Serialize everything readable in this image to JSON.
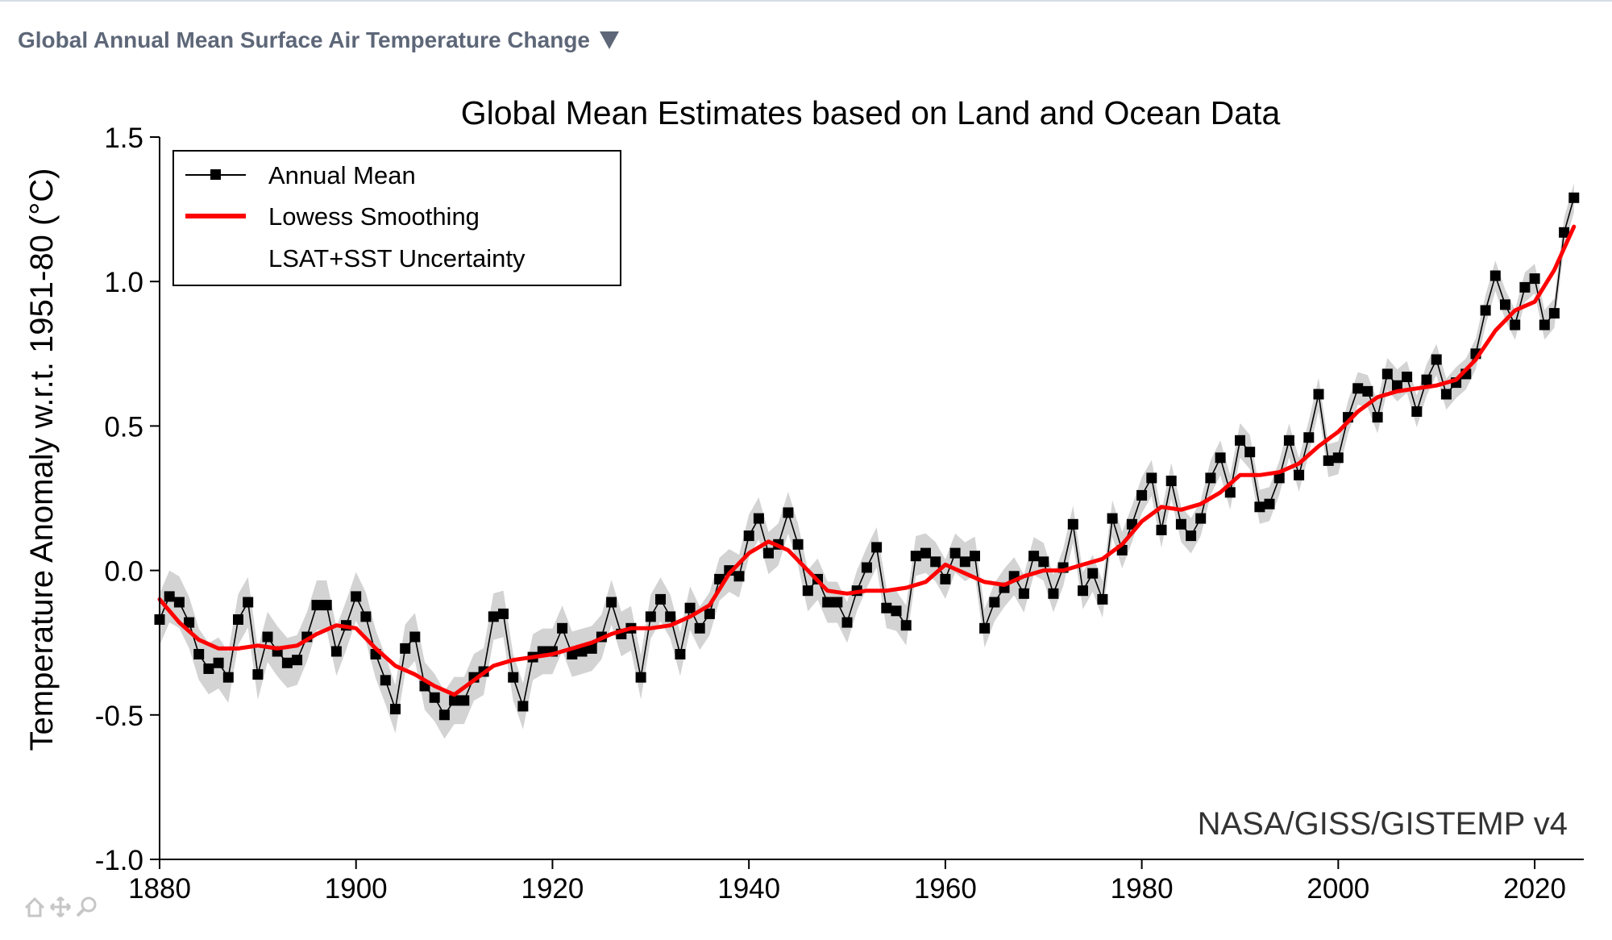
{
  "header": {
    "title": "Global Annual Mean Surface Air Temperature Change",
    "toggle_icon": "triangle-down-icon"
  },
  "colors": {
    "header_text": "#5d6778",
    "smoothing": "#ff0000",
    "uncertainty": "#d3d3d3",
    "annual": "#000000"
  },
  "toolbar": {
    "icons": [
      "home-icon",
      "pan-icon",
      "zoom-icon"
    ]
  },
  "chart_data": {
    "type": "line",
    "title": "Global Mean Estimates based on Land and Ocean Data",
    "xlabel": "",
    "ylabel": "Temperature Anomaly w.r.t. 1951-80 (°C)",
    "annotation": "NASA/GISS/GISTEMP v4",
    "xlim": [
      1880,
      2025
    ],
    "ylim": [
      -1.0,
      1.5
    ],
    "x_ticks": [
      "1880",
      "1900",
      "1920",
      "1940",
      "1960",
      "1980",
      "2000",
      "2020"
    ],
    "y_ticks": [
      "1.5",
      "1.0",
      "0.5",
      "0.0",
      "-0.5",
      "-1.0"
    ],
    "legend": {
      "position": "top-left",
      "entries": [
        "Annual Mean",
        "Lowess Smoothing",
        "LSAT+SST Uncertainty"
      ]
    },
    "series": [
      {
        "name": "Annual Mean",
        "style": "line-with-square-markers",
        "x": [
          1880,
          1881,
          1882,
          1883,
          1884,
          1885,
          1886,
          1887,
          1888,
          1889,
          1890,
          1891,
          1892,
          1893,
          1894,
          1895,
          1896,
          1897,
          1898,
          1899,
          1900,
          1901,
          1902,
          1903,
          1904,
          1905,
          1906,
          1907,
          1908,
          1909,
          1910,
          1911,
          1912,
          1913,
          1914,
          1915,
          1916,
          1917,
          1918,
          1919,
          1920,
          1921,
          1922,
          1923,
          1924,
          1925,
          1926,
          1927,
          1928,
          1929,
          1930,
          1931,
          1932,
          1933,
          1934,
          1935,
          1936,
          1937,
          1938,
          1939,
          1940,
          1941,
          1942,
          1943,
          1944,
          1945,
          1946,
          1947,
          1948,
          1949,
          1950,
          1951,
          1952,
          1953,
          1954,
          1955,
          1956,
          1957,
          1958,
          1959,
          1960,
          1961,
          1962,
          1963,
          1964,
          1965,
          1966,
          1967,
          1968,
          1969,
          1970,
          1971,
          1972,
          1973,
          1974,
          1975,
          1976,
          1977,
          1978,
          1979,
          1980,
          1981,
          1982,
          1983,
          1984,
          1985,
          1986,
          1987,
          1988,
          1989,
          1990,
          1991,
          1992,
          1993,
          1994,
          1995,
          1996,
          1997,
          1998,
          1999,
          2000,
          2001,
          2002,
          2003,
          2004,
          2005,
          2006,
          2007,
          2008,
          2009,
          2010,
          2011,
          2012,
          2013,
          2014,
          2015,
          2016,
          2017,
          2018,
          2019,
          2020,
          2021,
          2022,
          2023,
          2024
        ],
        "y": [
          -0.17,
          -0.09,
          -0.11,
          -0.18,
          -0.29,
          -0.34,
          -0.32,
          -0.37,
          -0.17,
          -0.11,
          -0.36,
          -0.23,
          -0.28,
          -0.32,
          -0.31,
          -0.23,
          -0.12,
          -0.12,
          -0.28,
          -0.19,
          -0.09,
          -0.16,
          -0.29,
          -0.38,
          -0.48,
          -0.27,
          -0.23,
          -0.4,
          -0.44,
          -0.5,
          -0.45,
          -0.45,
          -0.37,
          -0.35,
          -0.16,
          -0.15,
          -0.37,
          -0.47,
          -0.3,
          -0.28,
          -0.28,
          -0.2,
          -0.29,
          -0.28,
          -0.27,
          -0.23,
          -0.11,
          -0.22,
          -0.2,
          -0.37,
          -0.16,
          -0.1,
          -0.16,
          -0.29,
          -0.13,
          -0.2,
          -0.15,
          -0.03,
          0.0,
          -0.02,
          0.12,
          0.18,
          0.06,
          0.09,
          0.2,
          0.09,
          -0.07,
          -0.03,
          -0.11,
          -0.11,
          -0.18,
          -0.07,
          0.01,
          0.08,
          -0.13,
          -0.14,
          -0.19,
          0.05,
          0.06,
          0.03,
          -0.03,
          0.06,
          0.03,
          0.05,
          -0.2,
          -0.11,
          -0.06,
          -0.02,
          -0.08,
          0.05,
          0.03,
          -0.08,
          0.01,
          0.16,
          -0.07,
          -0.01,
          -0.1,
          0.18,
          0.07,
          0.16,
          0.26,
          0.32,
          0.14,
          0.31,
          0.16,
          0.12,
          0.18,
          0.32,
          0.39,
          0.27,
          0.45,
          0.41,
          0.22,
          0.23,
          0.32,
          0.45,
          0.33,
          0.46,
          0.61,
          0.38,
          0.39,
          0.53,
          0.63,
          0.62,
          0.53,
          0.68,
          0.64,
          0.67,
          0.55,
          0.66,
          0.73,
          0.61,
          0.65,
          0.68,
          0.75,
          0.9,
          1.02,
          0.92,
          0.85,
          0.98,
          1.01,
          0.85,
          0.89,
          1.17,
          1.29
        ]
      },
      {
        "name": "Lowess Smoothing",
        "style": "line",
        "x": [
          1880,
          1882,
          1884,
          1886,
          1888,
          1890,
          1892,
          1894,
          1896,
          1898,
          1900,
          1902,
          1904,
          1906,
          1908,
          1910,
          1912,
          1914,
          1916,
          1918,
          1920,
          1922,
          1924,
          1926,
          1928,
          1930,
          1932,
          1934,
          1936,
          1938,
          1940,
          1942,
          1944,
          1946,
          1948,
          1950,
          1952,
          1954,
          1956,
          1958,
          1960,
          1962,
          1964,
          1966,
          1968,
          1970,
          1972,
          1974,
          1976,
          1978,
          1980,
          1982,
          1984,
          1986,
          1988,
          1990,
          1992,
          1994,
          1996,
          1998,
          2000,
          2002,
          2004,
          2006,
          2008,
          2010,
          2012,
          2014,
          2016,
          2018,
          2020,
          2022,
          2024
        ],
        "y": [
          -0.1,
          -0.18,
          -0.24,
          -0.27,
          -0.27,
          -0.26,
          -0.27,
          -0.26,
          -0.22,
          -0.19,
          -0.2,
          -0.27,
          -0.33,
          -0.36,
          -0.4,
          -0.43,
          -0.38,
          -0.33,
          -0.31,
          -0.3,
          -0.29,
          -0.27,
          -0.25,
          -0.22,
          -0.2,
          -0.2,
          -0.19,
          -0.16,
          -0.12,
          -0.01,
          0.06,
          0.1,
          0.07,
          0.0,
          -0.07,
          -0.08,
          -0.07,
          -0.07,
          -0.06,
          -0.04,
          0.02,
          -0.01,
          -0.04,
          -0.05,
          -0.02,
          0.0,
          0.0,
          0.02,
          0.04,
          0.09,
          0.17,
          0.22,
          0.21,
          0.23,
          0.27,
          0.33,
          0.33,
          0.34,
          0.37,
          0.43,
          0.48,
          0.55,
          0.6,
          0.62,
          0.63,
          0.64,
          0.66,
          0.73,
          0.83,
          0.9,
          0.93,
          1.04,
          1.19
        ]
      }
    ],
    "uncertainty_halfwidth_early": 0.09,
    "uncertainty_halfwidth_late": 0.05
  }
}
